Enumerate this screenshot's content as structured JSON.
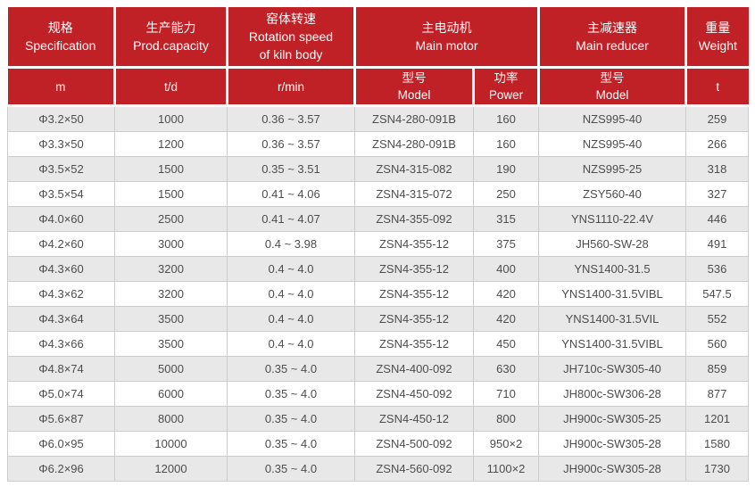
{
  "colors": {
    "header_bg": "#c02127",
    "header_text": "#ffffff",
    "row_bg": "#ffffff",
    "row_alt_bg": "#e8e8e8",
    "border": "#cccccc",
    "cell_text": "#4d4d4d"
  },
  "chart_data": {
    "type": "table",
    "title": "Rotary kiln technical specification table",
    "header": {
      "spec_zh": "规格",
      "spec_en": "Specification",
      "spec_unit": "m",
      "capacity_zh": "生产能力",
      "capacity_en": "Prod.capacity",
      "capacity_unit": "t/d",
      "rotation_zh": "窑体转速",
      "rotation_en_line1": "Rotation speed",
      "rotation_en_line2": "of kiln body",
      "rotation_unit": "r/min",
      "motor_zh": "主电动机",
      "motor_en": "Main motor",
      "motor_model_zh": "型号",
      "motor_model_en": "Model",
      "motor_power_zh": "功率",
      "motor_power_en": "Power",
      "reducer_zh": "主减速器",
      "reducer_en": "Main reducer",
      "reducer_model_zh": "型号",
      "reducer_model_en": "Model",
      "weight_zh": "重量",
      "weight_en": "Weight",
      "weight_unit": "t"
    },
    "columns": [
      "Specification (m)",
      "Prod.capacity (t/d)",
      "Rotation speed of kiln body (r/min)",
      "Main motor Model",
      "Main motor Power",
      "Main reducer Model",
      "Weight (t)"
    ],
    "rows": [
      [
        "Φ3.2×50",
        "1000",
        "0.36 ~ 3.57",
        "ZSN4-280-091B",
        "160",
        "NZS995-40",
        "259"
      ],
      [
        "Φ3.3×50",
        "1200",
        "0.36 ~ 3.57",
        "ZSN4-280-091B",
        "160",
        "NZS995-40",
        "266"
      ],
      [
        "Φ3.5×52",
        "1500",
        "0.35 ~ 3.51",
        "ZSN4-315-082",
        "190",
        "NZS995-25",
        "318"
      ],
      [
        "Φ3.5×54",
        "1500",
        "0.41 ~ 4.06",
        "ZSN4-315-072",
        "250",
        "ZSY560-40",
        "327"
      ],
      [
        "Φ4.0×60",
        "2500",
        "0.41 ~ 4.07",
        "ZSN4-355-092",
        "315",
        "YNS1110-22.4V",
        "446"
      ],
      [
        "Φ4.2×60",
        "3000",
        "0.4 ~ 3.98",
        "ZSN4-355-12",
        "375",
        "JH560-SW-28",
        "491"
      ],
      [
        "Φ4.3×60",
        "3200",
        "0.4 ~ 4.0",
        "ZSN4-355-12",
        "400",
        "YNS1400-31.5",
        "536"
      ],
      [
        "Φ4.3×62",
        "3200",
        "0.4 ~ 4.0",
        "ZSN4-355-12",
        "420",
        "YNS1400-31.5VIBL",
        "547.5"
      ],
      [
        "Φ4.3×64",
        "3500",
        "0.4 ~ 4.0",
        "ZSN4-355-12",
        "420",
        "YNS1400-31.5VIL",
        "552"
      ],
      [
        "Φ4.3×66",
        "3500",
        "0.4 ~ 4.0",
        "ZSN4-355-12",
        "450",
        "YNS1400-31.5VIBL",
        "560"
      ],
      [
        "Φ4.8×74",
        "5000",
        "0.35 ~ 4.0",
        "ZSN4-400-092",
        "630",
        "JH710c-SW305-40",
        "859"
      ],
      [
        "Φ5.0×74",
        "6000",
        "0.35 ~ 4.0",
        "ZSN4-450-092",
        "710",
        "JH800c-SW306-28",
        "877"
      ],
      [
        "Φ5.6×87",
        "8000",
        "0.35 ~ 4.0",
        "ZSN4-450-12",
        "800",
        "JH900c-SW305-25",
        "1201"
      ],
      [
        "Φ6.0×95",
        "10000",
        "0.35 ~ 4.0",
        "ZSN4-500-092",
        "950×2",
        "JH900c-SW305-28",
        "1580"
      ],
      [
        "Φ6.2×96",
        "12000",
        "0.35 ~ 4.0",
        "ZSN4-560-092",
        "1100×2",
        "JH900c-SW305-28",
        "1730"
      ]
    ]
  }
}
